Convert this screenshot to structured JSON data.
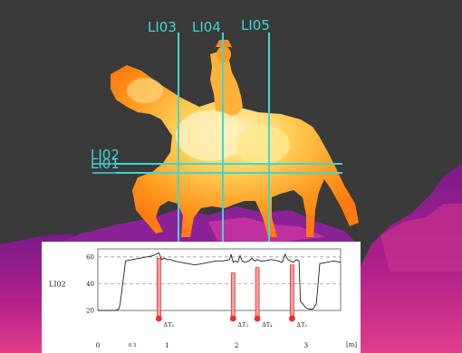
{
  "colors": {
    "background": "#3a3a3a",
    "scan_line": "#3fd6d4",
    "marker": "#e8302a",
    "profile_line": "#222222"
  },
  "scan_lines": {
    "vertical": [
      "LI03",
      "LI04",
      "LI05"
    ],
    "horizontal": [
      "LI02",
      "LI01"
    ]
  },
  "chart_data": {
    "type": "line",
    "ylabel": "LI02",
    "xunit": "[m]",
    "xlim": [
      0,
      3.5
    ],
    "ylim": [
      20,
      66
    ],
    "x_ticks": [
      {
        "value": 0,
        "label": "0"
      },
      {
        "value": 0.5,
        "label": "0.5"
      },
      {
        "value": 1,
        "label": "1"
      },
      {
        "value": 2,
        "label": "2"
      },
      {
        "value": 3,
        "label": "3"
      }
    ],
    "y_ticks": [
      20,
      40,
      60
    ],
    "grid": "dashed-horizontal",
    "series": [
      {
        "x": [
          0.0,
          0.15,
          0.25,
          0.3,
          0.32,
          0.4,
          0.5,
          0.6,
          0.7,
          0.8,
          0.88,
          0.92,
          0.96,
          1.0,
          1.05,
          1.1,
          1.2,
          1.3,
          1.4,
          1.5,
          1.6,
          1.7,
          1.8,
          1.9,
          1.92,
          1.95,
          1.98,
          2.02,
          2.05,
          2.08,
          2.12,
          2.18,
          2.22,
          2.26,
          2.3,
          2.34,
          2.4,
          2.5,
          2.6,
          2.66,
          2.7,
          2.74,
          2.78,
          2.82,
          2.86,
          2.9,
          2.92,
          3.0,
          3.05,
          3.1,
          3.15,
          3.2,
          3.3,
          3.4,
          3.5
        ],
        "y": [
          20,
          20,
          20,
          21,
          24,
          57,
          58,
          59,
          60,
          61,
          63,
          58,
          59,
          58,
          58,
          57,
          56,
          55,
          54,
          55,
          56,
          57,
          57,
          58,
          62,
          56,
          57,
          56,
          61,
          57,
          56,
          57,
          59,
          57,
          58,
          57,
          57,
          58,
          57,
          56,
          62,
          58,
          57,
          56,
          58,
          57,
          27,
          22,
          21,
          21,
          25,
          55,
          56,
          57,
          56
        ]
      }
    ],
    "markers": [
      {
        "label": "ΔT₂",
        "x": 0.88,
        "y_top": 59
      },
      {
        "label": "ΔT₃",
        "x": 1.95,
        "y_top": 48
      },
      {
        "label": "ΔT₄",
        "x": 2.3,
        "y_top": 52
      },
      {
        "label": "ΔT₅",
        "x": 2.8,
        "y_top": 54
      }
    ]
  }
}
